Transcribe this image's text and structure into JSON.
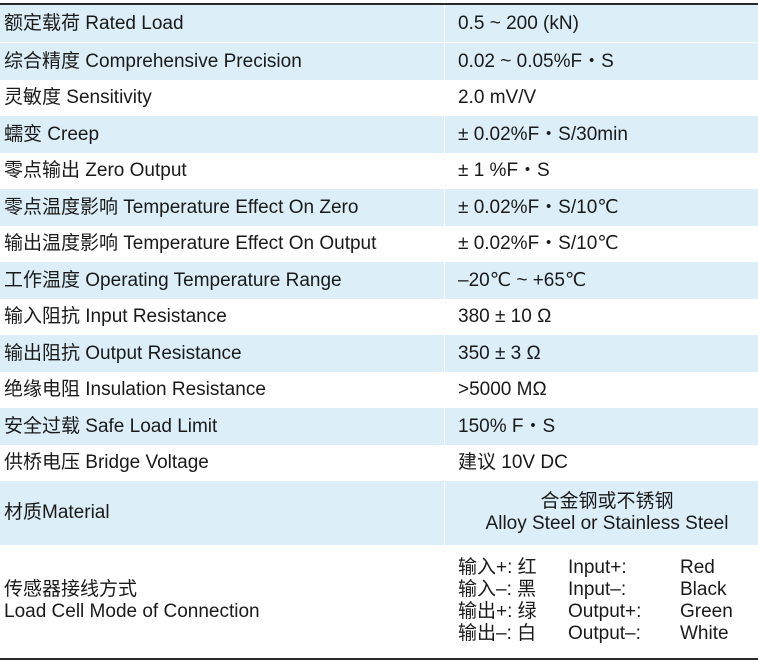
{
  "rows": [
    {
      "k": "额定载荷 Rated Load",
      "v": "0.5 ~ 200 (kN)"
    },
    {
      "k": "综合精度 Comprehensive Precision",
      "v": "0.02 ~ 0.05%F・S"
    },
    {
      "k": "灵敏度 Sensitivity",
      "v": "2.0 mV/V"
    },
    {
      "k": "蠕变 Creep",
      "v": "± 0.02%F・S/30min"
    },
    {
      "k": "零点输出 Zero Output",
      "v": "± 1 %F・S"
    },
    {
      "k": "零点温度影响 Temperature Effect On Zero",
      "v": "± 0.02%F・S/10℃"
    },
    {
      "k": "输出温度影响 Temperature Effect On Output",
      "v": "± 0.02%F・S/10℃"
    },
    {
      "k": "工作温度 Operating Temperature Range",
      "v": "–20℃ ~ +65℃"
    },
    {
      "k": "输入阻抗 Input Resistance",
      "v": "380 ± 10 Ω"
    },
    {
      "k": "输出阻抗 Output Resistance",
      "v": "350 ± 3 Ω"
    },
    {
      "k": "绝缘电阻 Insulation Resistance",
      "v": ">5000 MΩ"
    },
    {
      "k": "安全过载 Safe Load Limit",
      "v": "150% F・S"
    },
    {
      "k": "供桥电压 Bridge Voltage",
      "v": "建议 10V DC"
    }
  ],
  "material": {
    "k": "材质Material",
    "v_cn": "合金钢或不锈钢",
    "v_en": "Alloy Steel or Stainless Steel"
  },
  "connection": {
    "k_cn": "传感器接线方式",
    "k_en": "Load Cell Mode of Connection",
    "wires": [
      {
        "cn": "输入+:  红",
        "en": "Input+:",
        "color": "Red"
      },
      {
        "cn": "输入–:  黑",
        "en": "Input–:",
        "color": "Black"
      },
      {
        "cn": "输出+:  绿",
        "en": "Output+:",
        "color": "Green"
      },
      {
        "cn": "输出–:  白",
        "en": "Output–:",
        "color": "White"
      }
    ]
  }
}
